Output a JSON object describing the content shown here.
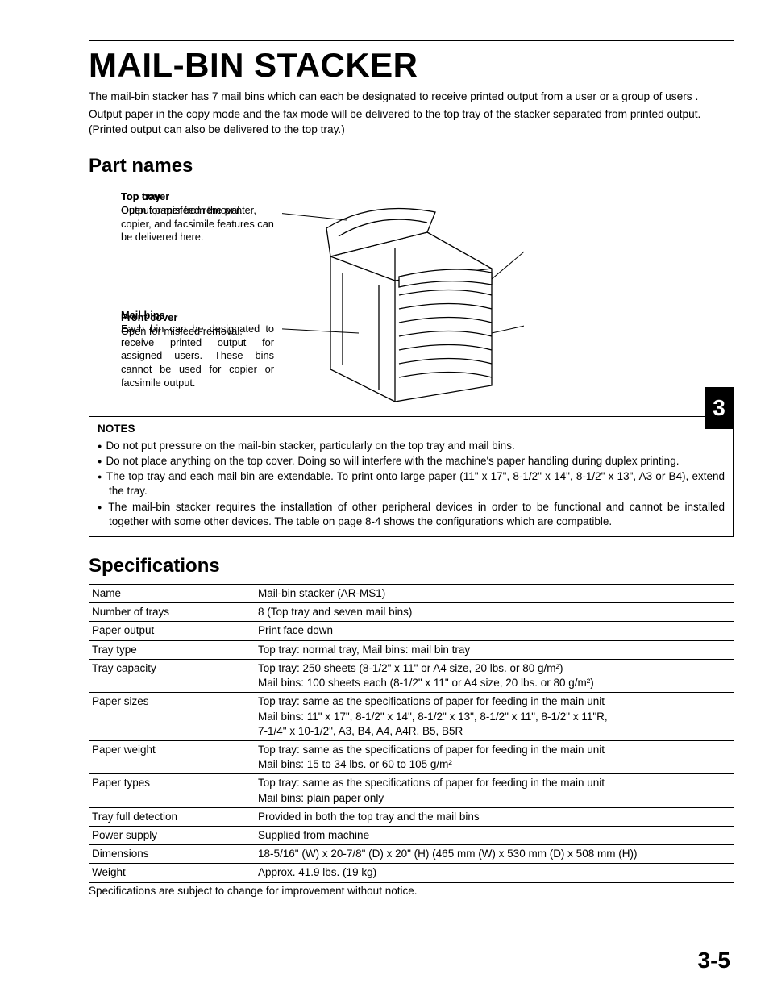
{
  "page_title": "MAIL-BIN STACKER",
  "intro_p1": "The mail-bin stacker has 7 mail bins which can each be designated to receive printed output from a user or a group of users .",
  "intro_p2": "Output paper in the copy mode and the fax mode will be delivered to the top tray of the stacker separated from printed output. (Printed output can also be delivered to the top tray.)",
  "section_a": "Part names",
  "callouts": {
    "top_cover_label": "Top cover",
    "top_cover_desc": "Open for misfeed removal.",
    "front_cover_label": "Front cover",
    "front_cover_desc": "Open for misfeed removal.",
    "top_tray_label": "Top tray",
    "top_tray_desc": "Output paper from the printer, copier, and facsimile features can be delivered here.",
    "mail_bins_label": "Mail bins",
    "mail_bins_desc": "Each bin can be designated to receive printed output for assigned users. These bins cannot be used for copier or facsimile output."
  },
  "notes_heading": "NOTES",
  "notes": [
    "Do not put pressure on the mail-bin stacker, particularly on the top tray and mail bins.",
    "Do not place anything on the top cover. Doing so will interfere with the machine's paper handling during duplex printing.",
    "The top tray and each mail bin are extendable. To print onto large paper (11\" x 17\", 8-1/2\" x 14\", 8-1/2\" x 13\", A3 or B4), extend the tray.",
    "The mail-bin stacker requires the installation of other peripheral devices in order to be functional and cannot be installed together with some other devices. The table on page 8-4 shows the configurations which are compatible."
  ],
  "section_b": "Specifications",
  "spec_rows": [
    [
      "Name",
      "Mail-bin stacker (AR-MS1)"
    ],
    [
      "Number of trays",
      "8 (Top tray and seven mail bins)"
    ],
    [
      "Paper output",
      "Print face down"
    ],
    [
      "Tray type",
      "Top tray: normal tray, Mail bins: mail bin tray"
    ],
    [
      "Tray capacity",
      "Top tray: 250 sheets (8-1/2\" x 11\" or A4 size, 20 lbs. or 80 g/m²)\nMail bins: 100 sheets each (8-1/2\" x 11\" or A4 size, 20 lbs. or 80 g/m²)"
    ],
    [
      "Paper sizes",
      "Top tray: same as the specifications of paper for feeding in the main unit\nMail bins: 11\" x 17\", 8-1/2\" x 14\", 8-1/2\" x 13\", 8-1/2\" x 11\", 8-1/2\" x 11\"R,\n7-1/4\" x 10-1/2\", A3, B4, A4, A4R, B5, B5R"
    ],
    [
      "Paper weight",
      "Top tray: same as the specifications of paper for feeding in the main unit\nMail bins: 15 to 34 lbs. or 60 to 105 g/m²"
    ],
    [
      "Paper types",
      "Top tray: same as the specifications of paper for feeding in the main unit\nMail bins: plain paper only"
    ],
    [
      "Tray full detection",
      "Provided in both the top tray and the mail bins"
    ],
    [
      "Power supply",
      "Supplied from machine"
    ],
    [
      "Dimensions",
      "18-5/16\" (W) x 20-7/8\" (D) x 20\" (H) (465 mm (W) x 530 mm (D) x 508 mm (H))"
    ],
    [
      "Weight",
      "Approx. 41.9 lbs. (19 kg)"
    ]
  ],
  "spec_footnote": "Specifications are subject to change for improvement without notice.",
  "chapter_tab": "3",
  "page_number": "3-5"
}
